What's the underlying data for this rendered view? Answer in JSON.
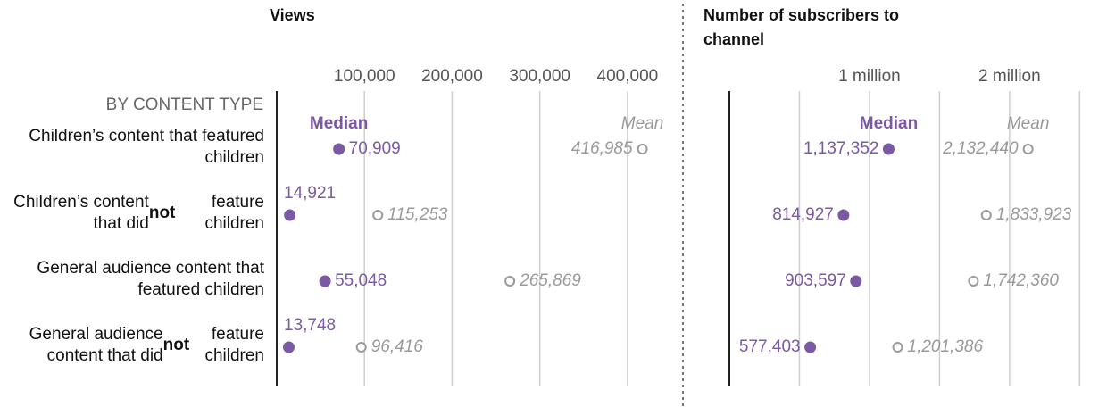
{
  "chart_data": [
    {
      "type": "dot",
      "title": "Views",
      "row_header": "BY CONTENT TYPE",
      "categories": [
        "Children’s content that featured children",
        "Children’s content that did not feature children",
        "General audience content that featured children",
        "General audience content that did not feature children"
      ],
      "xlim": [
        0,
        450000
      ],
      "xticks": [
        {
          "value": 100000,
          "label": "100,000"
        },
        {
          "value": 200000,
          "label": "200,000"
        },
        {
          "value": 300000,
          "label": "300,000"
        },
        {
          "value": 400000,
          "label": "400,000"
        }
      ],
      "series": [
        {
          "name": "Median",
          "color": "#7b59a3",
          "values": [
            70909,
            14921,
            55048,
            13748
          ],
          "value_labels": [
            "70,909",
            "14,921",
            "55,048",
            "13,748"
          ]
        },
        {
          "name": "Mean",
          "color": "#9a9a9a",
          "values": [
            416985,
            115253,
            265869,
            96416
          ],
          "value_labels": [
            "416,985",
            "115,253",
            "265,869",
            "96,416"
          ]
        }
      ]
    },
    {
      "type": "dot",
      "title": "Number of subscribers to channel",
      "xlim": [
        0,
        2600000
      ],
      "xticks": [
        {
          "value": 1000000,
          "label": "1 million"
        },
        {
          "value": 2000000,
          "label": "2 million"
        }
      ],
      "minor_grid": [
        500000,
        1500000,
        2500000
      ],
      "series": [
        {
          "name": "Median",
          "color": "#7b59a3",
          "values": [
            1137352,
            814927,
            903597,
            577403
          ],
          "value_labels": [
            "1,137,352",
            "814,927",
            "903,597",
            "577,403"
          ]
        },
        {
          "name": "Mean",
          "color": "#9a9a9a",
          "values": [
            2132440,
            1833923,
            1742360,
            1201386
          ],
          "value_labels": [
            "2,132,440",
            "1,833,923",
            "1,742,360",
            "1,201,386"
          ]
        }
      ]
    }
  ]
}
